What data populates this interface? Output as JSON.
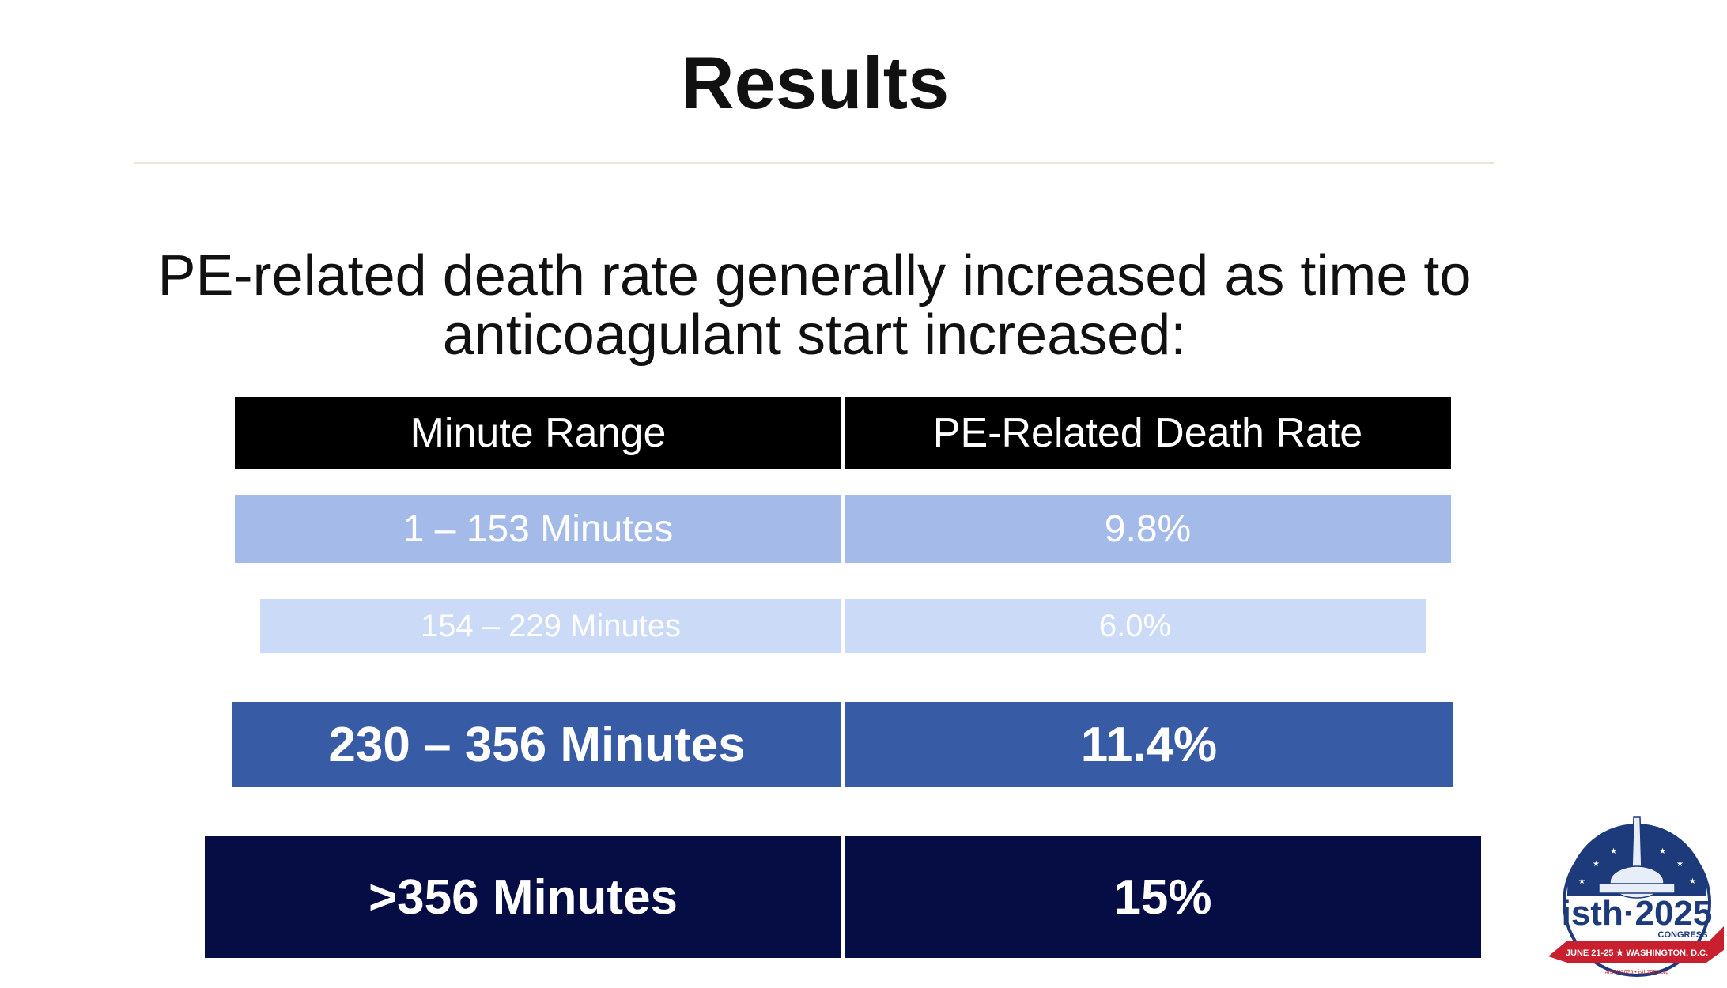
{
  "slide": {
    "title": "Results",
    "subtitle_line1": "PE-related death rate generally increased as time to",
    "subtitle_line2": "anticoagulant start increased:"
  },
  "table": {
    "headers": [
      "Minute Range",
      "PE-Related Death Rate"
    ],
    "rows": [
      {
        "range": "1 – 153 Minutes",
        "rate": "9.8%"
      },
      {
        "range": "154 – 229 Minutes",
        "rate": "6.0%"
      },
      {
        "range": "230 – 356 Minutes",
        "rate": "11.4%"
      },
      {
        "range": ">356 Minutes",
        "rate": "15%"
      }
    ]
  },
  "logo": {
    "brand": "isth·2025",
    "sub": "CONGRESS",
    "banner": "JUNE 21-25 ★ WASHINGTON, D.C.",
    "footer": "#ISTH2025 • isth2025.org"
  },
  "colors": {
    "header": "#000000",
    "row1": "#a4bae9",
    "row2": "#cbdaf6",
    "row3": "#385ba6",
    "row4": "#060d45"
  }
}
